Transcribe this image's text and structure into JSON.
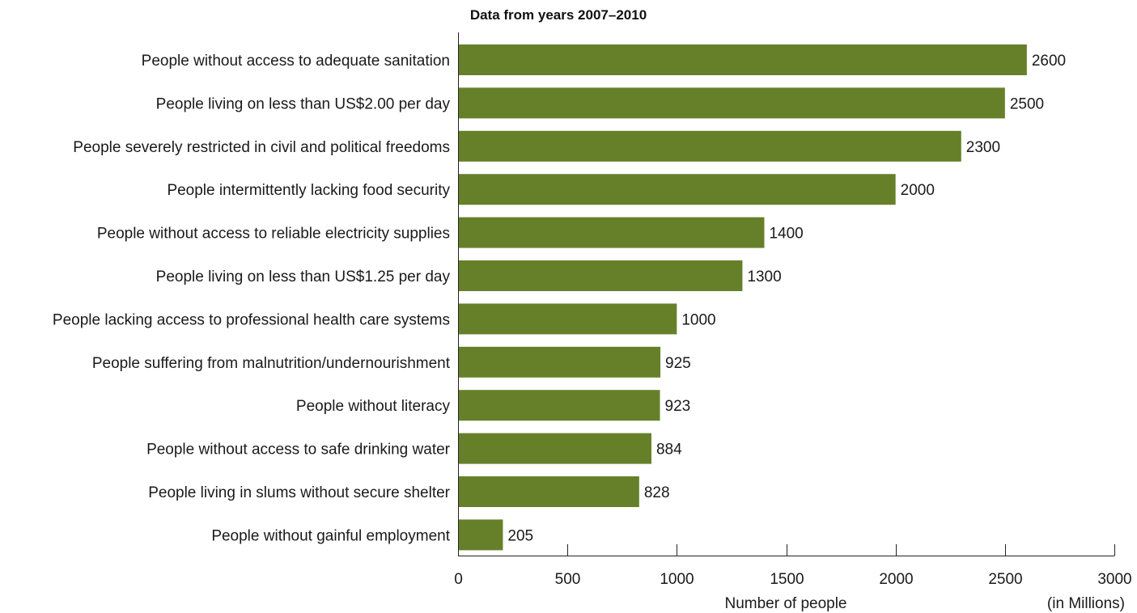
{
  "chart_data": {
    "type": "bar",
    "orientation": "horizontal",
    "title": "Data from years 2007–2010",
    "xlabel": "Number of people",
    "xlabel_unit": "(in Millions)",
    "ylabel": "",
    "xlim": [
      0,
      3000
    ],
    "xticks": [
      0,
      500,
      1000,
      1500,
      2000,
      2500,
      3000
    ],
    "grid": false,
    "legend": "none",
    "bar_color": "#66802a",
    "categories": [
      "People without access to adequate sanitation",
      "People living on less than US$2.00 per day",
      "People severely restricted in civil and political freedoms",
      "People intermittently lacking food security",
      "People without access to reliable electricity supplies",
      "People living on less than US$1.25 per day",
      "People lacking access to professional health care systems",
      "People suffering from malnutrition/undernourishment",
      "People without literacy",
      "People without access to safe drinking water",
      "People living in slums without secure shelter",
      "People without gainful employment"
    ],
    "values": [
      2600,
      2500,
      2300,
      2000,
      1400,
      1300,
      1000,
      925,
      923,
      884,
      828,
      205
    ],
    "value_labels": [
      "2600",
      "2500",
      "2300",
      "2000",
      "1400",
      "1300",
      "1000",
      "925",
      "923",
      "884",
      "828",
      "205"
    ]
  }
}
